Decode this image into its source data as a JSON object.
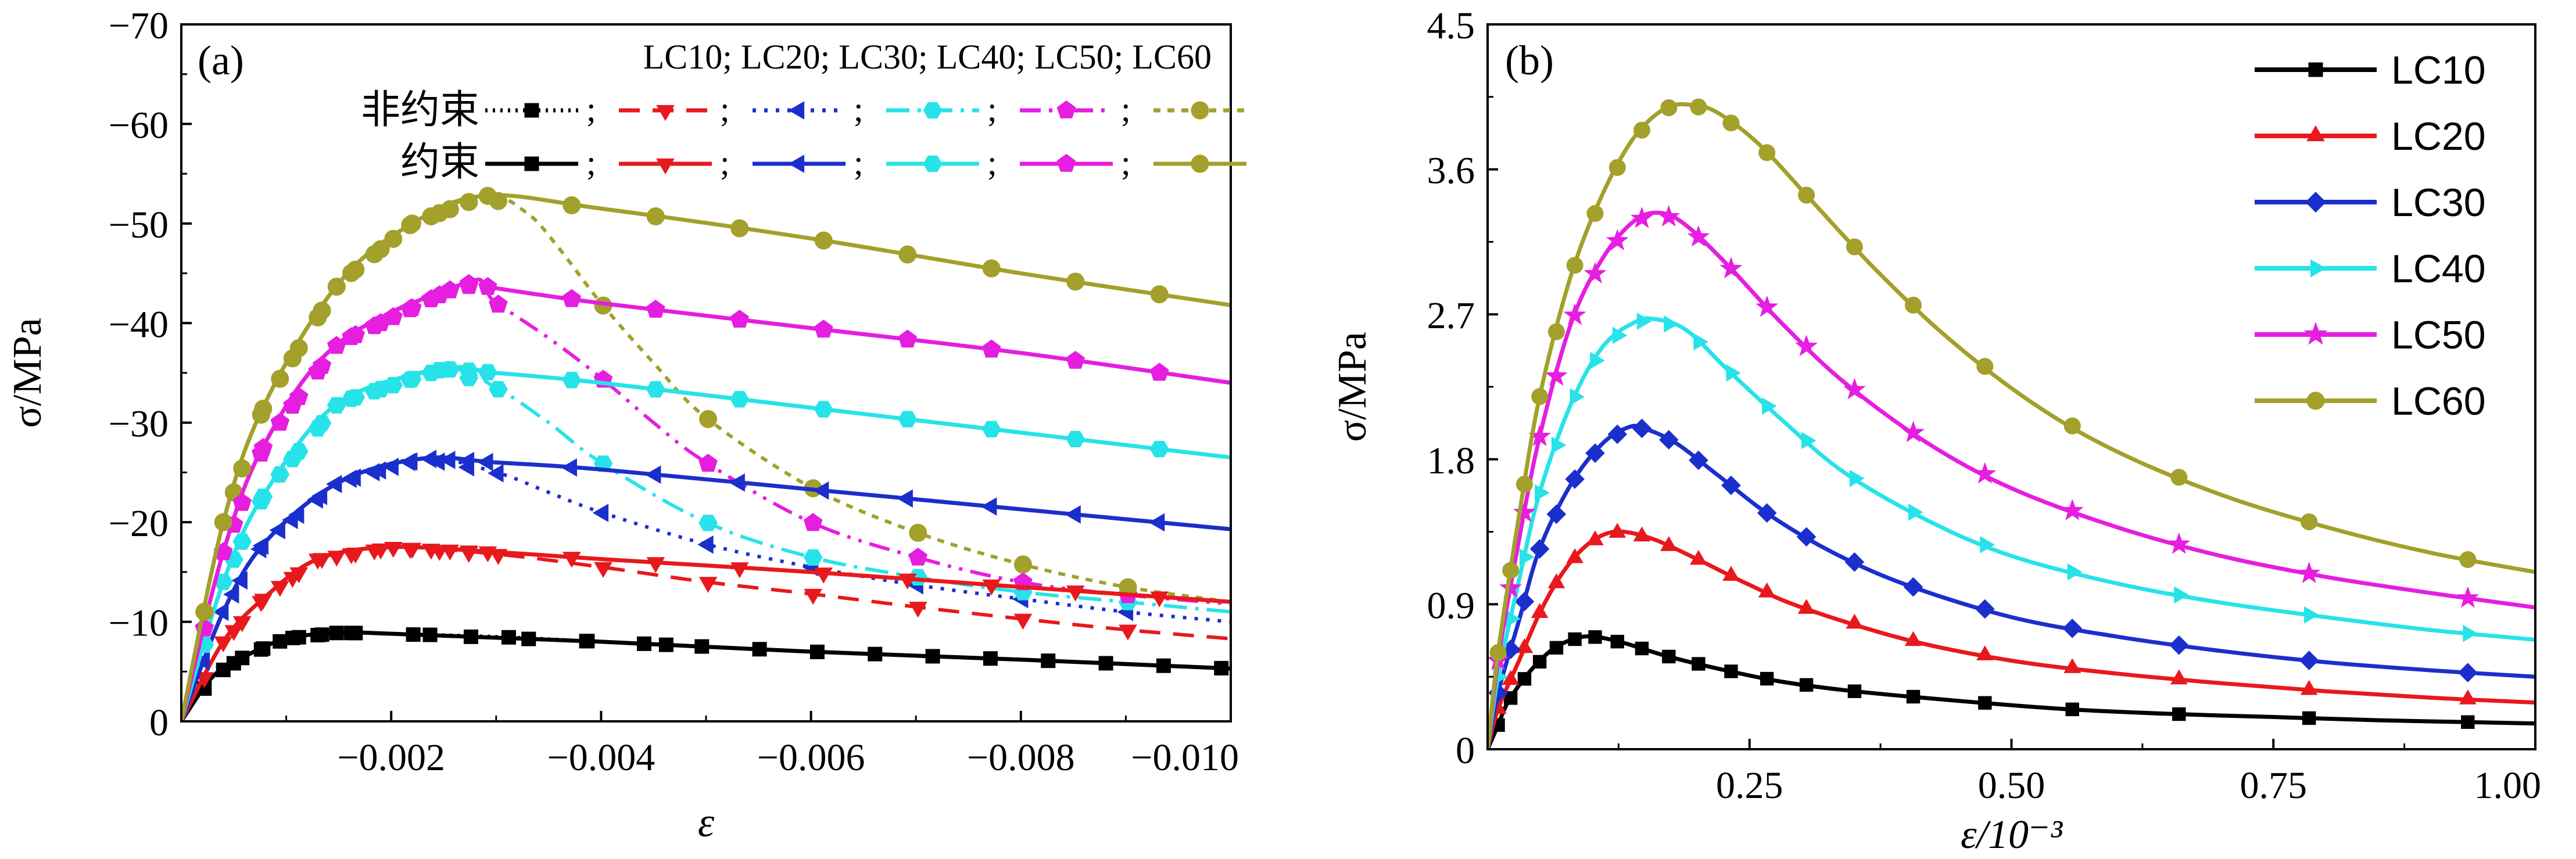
{
  "figure": {
    "panel_a_label": "(a)",
    "panel_b_label": "(b)"
  },
  "colors": {
    "LC10": "#000000",
    "LC20": "#e8191c",
    "LC30": "#1b2fcc",
    "LC40": "#27e3e9",
    "LC50": "#e51ee0",
    "LC60": "#a3a02b"
  },
  "chart_data": [
    {
      "type": "line",
      "panel": "a",
      "title": "",
      "xlabel": "ε",
      "ylabel": "σ/MPa",
      "xlim": [
        0,
        -0.01
      ],
      "ylim": [
        0,
        -70
      ],
      "x_ticks": [
        -0.002,
        -0.004,
        -0.006,
        -0.008,
        -0.01
      ],
      "x_tick_labels": [
        "−0.002",
        "−0.004",
        "−0.006",
        "−0.008",
        "−0.010"
      ],
      "y_ticks": [
        0,
        -10,
        -20,
        -30,
        -40,
        -50,
        -60,
        -70
      ],
      "y_tick_labels": [
        "0",
        "−10",
        "−20",
        "−30",
        "−40",
        "−50",
        "−60",
        "−70"
      ],
      "legend": {
        "header": "LC10; LC20; LC30; LC40;  LC50; LC60",
        "row_unconfined": "非约束",
        "row_confined": "约束",
        "separator": ";"
      },
      "series": [
        {
          "name": "LC10 约束",
          "group": "confined",
          "key": "LC10",
          "marker": "square",
          "x": [
            0,
            -0.0003,
            -0.0006,
            -0.001,
            -0.0015,
            -0.002,
            -0.003,
            -0.004,
            -0.006,
            -0.008,
            -0.01
          ],
          "y": [
            0,
            -4.5,
            -6.5,
            -8.3,
            -8.9,
            -8.8,
            -8.4,
            -8,
            -7,
            -6.2,
            -5.3
          ]
        },
        {
          "name": "LC10 非约束",
          "group": "unconfined",
          "key": "LC10",
          "marker": "square",
          "x": [
            0,
            -0.0003,
            -0.0006,
            -0.001,
            -0.0015,
            -0.002,
            -0.003,
            -0.004,
            -0.005
          ],
          "y": [
            0,
            -4.5,
            -6.5,
            -8.3,
            -8.9,
            -8.8,
            -8.5,
            -8,
            -7.5
          ]
        },
        {
          "name": "LC20 约束",
          "group": "confined",
          "key": "LC20",
          "marker": "triangle-down",
          "x": [
            0,
            -0.0004,
            -0.0008,
            -0.0013,
            -0.002,
            -0.003,
            -0.004,
            -0.006,
            -0.008,
            -0.01
          ],
          "y": [
            0,
            -8,
            -12.5,
            -16.3,
            -17.5,
            -17,
            -16.3,
            -15,
            -13.5,
            -12
          ]
        },
        {
          "name": "LC20 非约束",
          "group": "unconfined",
          "key": "LC20",
          "marker": "triangle-down",
          "x": [
            0,
            -0.0004,
            -0.0008,
            -0.0013,
            -0.002,
            -0.003,
            -0.004,
            -0.005,
            -0.006,
            -0.007,
            -0.008,
            -0.009,
            -0.01
          ],
          "y": [
            0,
            -8,
            -12.5,
            -16.3,
            -17.5,
            -16.8,
            -15.5,
            -14,
            -12.8,
            -11.5,
            -10.3,
            -9.2,
            -8.3
          ]
        },
        {
          "name": "LC30 约束",
          "group": "confined",
          "key": "LC30",
          "marker": "triangle-left",
          "x": [
            0,
            -0.0004,
            -0.0008,
            -0.0015,
            -0.0023,
            -0.003,
            -0.004,
            -0.006,
            -0.008,
            -0.01
          ],
          "y": [
            0,
            -11,
            -18,
            -24,
            -26.4,
            -26,
            -25.3,
            -23.3,
            -21.3,
            -19.3
          ]
        },
        {
          "name": "LC30 非约束",
          "group": "unconfined",
          "key": "LC30",
          "marker": "triangle-left",
          "x": [
            0,
            -0.0004,
            -0.0008,
            -0.0015,
            -0.0023,
            -0.003,
            -0.0035,
            -0.004,
            -0.005,
            -0.006,
            -0.007,
            -0.008,
            -0.009,
            -0.01
          ],
          "y": [
            0,
            -11,
            -18,
            -24,
            -26.4,
            -25,
            -23,
            -21,
            -17.8,
            -15.5,
            -13.7,
            -12.3,
            -11,
            -10
          ]
        },
        {
          "name": "LC40 约束",
          "group": "confined",
          "key": "LC40",
          "marker": "hexagon",
          "x": [
            0,
            -0.0004,
            -0.0008,
            -0.0015,
            -0.0025,
            -0.003,
            -0.004,
            -0.006,
            -0.008,
            -0.01
          ],
          "y": [
            0,
            -14,
            -23,
            -32,
            -35.4,
            -35,
            -34,
            -31.5,
            -29,
            -26.5
          ]
        },
        {
          "name": "LC40 非约束",
          "group": "unconfined",
          "key": "LC40",
          "marker": "hexagon",
          "x": [
            0,
            -0.0004,
            -0.0008,
            -0.0015,
            -0.0025,
            -0.003,
            -0.0035,
            -0.004,
            -0.005,
            -0.006,
            -0.007,
            -0.008,
            -0.009,
            -0.01
          ],
          "y": [
            0,
            -14,
            -23,
            -32,
            -35.4,
            -33.5,
            -30,
            -26,
            -20,
            -16.5,
            -14.5,
            -13,
            -12,
            -11
          ]
        },
        {
          "name": "LC50 约束",
          "group": "confined",
          "key": "LC50",
          "marker": "pentagon",
          "x": [
            0,
            -0.0004,
            -0.0008,
            -0.0015,
            -0.0027,
            -0.003,
            -0.004,
            -0.006,
            -0.008,
            -0.01
          ],
          "y": [
            0,
            -17,
            -28,
            -38,
            -44,
            -43.5,
            -42,
            -39.5,
            -37,
            -34
          ]
        },
        {
          "name": "LC50 非约束",
          "group": "unconfined",
          "key": "LC50",
          "marker": "pentagon",
          "x": [
            0,
            -0.0004,
            -0.0008,
            -0.0015,
            -0.0027,
            -0.003,
            -0.0035,
            -0.004,
            -0.0045,
            -0.005,
            -0.006,
            -0.007,
            -0.008,
            -0.009,
            -0.01
          ],
          "y": [
            0,
            -17,
            -28,
            -38,
            -44,
            -42,
            -38.5,
            -34.5,
            -30,
            -26,
            -20,
            -16.5,
            -14,
            -12.7,
            -11.8
          ]
        },
        {
          "name": "LC60 约束",
          "group": "confined",
          "key": "LC60",
          "marker": "circle",
          "x": [
            0,
            -0.0004,
            -0.0008,
            -0.0015,
            -0.0022,
            -0.0029,
            -0.004,
            -0.006,
            -0.008,
            -0.01
          ],
          "y": [
            0,
            -20,
            -32,
            -44,
            -50,
            -52.8,
            -51.5,
            -48.5,
            -45,
            -41.8
          ]
        },
        {
          "name": "LC60 非约束",
          "group": "unconfined",
          "key": "LC60",
          "marker": "circle",
          "x": [
            0,
            -0.0004,
            -0.0008,
            -0.0015,
            -0.0022,
            -0.0029,
            -0.0033,
            -0.0036,
            -0.004,
            -0.0045,
            -0.005,
            -0.006,
            -0.007,
            -0.008,
            -0.009,
            -0.01
          ],
          "y": [
            0,
            -20,
            -32,
            -44,
            -50,
            -52.8,
            -51,
            -47.5,
            -42,
            -36,
            -30.5,
            -23.5,
            -19,
            -15.8,
            -13.5,
            -12
          ]
        }
      ]
    },
    {
      "type": "line",
      "panel": "b",
      "title": "",
      "xlabel": "ε/10⁻³",
      "ylabel": "σ/MPa",
      "xlim": [
        0,
        1.0
      ],
      "ylim": [
        0,
        4.5
      ],
      "x_ticks": [
        0.25,
        0.5,
        0.75,
        1.0
      ],
      "x_tick_labels": [
        "0.25",
        "0.50",
        "0.75",
        "1.00"
      ],
      "y_ticks": [
        0,
        0.9,
        1.8,
        2.7,
        3.6,
        4.5
      ],
      "y_tick_labels": [
        "0",
        "0.9",
        "1.8",
        "2.7",
        "3.6",
        "4.5"
      ],
      "legend_position": "top-right",
      "series": [
        {
          "name": "LC10",
          "marker": "square",
          "x": [
            0,
            0.01,
            0.02,
            0.04,
            0.06,
            0.08,
            0.1,
            0.13,
            0.17,
            0.22,
            0.28,
            0.35,
            0.45,
            0.55,
            0.65,
            0.75,
            0.85,
            1.0
          ],
          "y": [
            0,
            0.15,
            0.3,
            0.48,
            0.61,
            0.68,
            0.7,
            0.66,
            0.58,
            0.5,
            0.42,
            0.36,
            0.3,
            0.25,
            0.22,
            0.2,
            0.18,
            0.16
          ]
        },
        {
          "name": "LC20",
          "marker": "triangle-up",
          "x": [
            0,
            0.01,
            0.03,
            0.05,
            0.07,
            0.09,
            0.11,
            0.13,
            0.16,
            0.2,
            0.25,
            0.3,
            0.4,
            0.5,
            0.6,
            0.7,
            0.8,
            0.9,
            1.0
          ],
          "y": [
            0,
            0.25,
            0.55,
            0.85,
            1.08,
            1.24,
            1.33,
            1.35,
            1.3,
            1.18,
            1.02,
            0.88,
            0.68,
            0.55,
            0.47,
            0.41,
            0.36,
            0.32,
            0.29
          ]
        },
        {
          "name": "LC30",
          "marker": "diamond",
          "x": [
            0,
            0.01,
            0.03,
            0.05,
            0.08,
            0.11,
            0.135,
            0.15,
            0.18,
            0.22,
            0.27,
            0.33,
            0.4,
            0.5,
            0.6,
            0.7,
            0.8,
            0.9,
            1.0
          ],
          "y": [
            0,
            0.35,
            0.8,
            1.25,
            1.65,
            1.9,
            2.0,
            1.99,
            1.9,
            1.7,
            1.45,
            1.22,
            1.02,
            0.82,
            0.7,
            0.61,
            0.54,
            0.49,
            0.45
          ]
        },
        {
          "name": "LC40",
          "marker": "triangle-right",
          "x": [
            0,
            0.01,
            0.03,
            0.05,
            0.08,
            0.11,
            0.14,
            0.16,
            0.19,
            0.23,
            0.28,
            0.34,
            0.42,
            0.5,
            0.6,
            0.7,
            0.8,
            0.9,
            1.0
          ],
          "y": [
            0,
            0.45,
            1.05,
            1.6,
            2.15,
            2.5,
            2.65,
            2.67,
            2.6,
            2.35,
            2.05,
            1.72,
            1.42,
            1.2,
            1.03,
            0.91,
            0.82,
            0.74,
            0.68
          ]
        },
        {
          "name": "LC50",
          "marker": "star",
          "x": [
            0,
            0.01,
            0.03,
            0.05,
            0.08,
            0.11,
            0.14,
            0.165,
            0.19,
            0.23,
            0.28,
            0.34,
            0.42,
            0.5,
            0.6,
            0.7,
            0.8,
            0.9,
            1.0
          ],
          "y": [
            0,
            0.55,
            1.3,
            1.95,
            2.65,
            3.05,
            3.28,
            3.33,
            3.25,
            3.0,
            2.65,
            2.28,
            1.9,
            1.62,
            1.38,
            1.2,
            1.07,
            0.97,
            0.88
          ]
        },
        {
          "name": "LC60",
          "marker": "circle",
          "x": [
            0,
            0.01,
            0.03,
            0.05,
            0.08,
            0.11,
            0.14,
            0.17,
            0.195,
            0.22,
            0.26,
            0.31,
            0.37,
            0.44,
            0.52,
            0.6,
            0.7,
            0.8,
            0.9,
            1.0
          ],
          "y": [
            0,
            0.6,
            1.45,
            2.2,
            2.95,
            3.45,
            3.8,
            3.98,
            4.0,
            3.95,
            3.75,
            3.4,
            2.98,
            2.55,
            2.15,
            1.85,
            1.58,
            1.38,
            1.22,
            1.1
          ]
        }
      ]
    }
  ]
}
